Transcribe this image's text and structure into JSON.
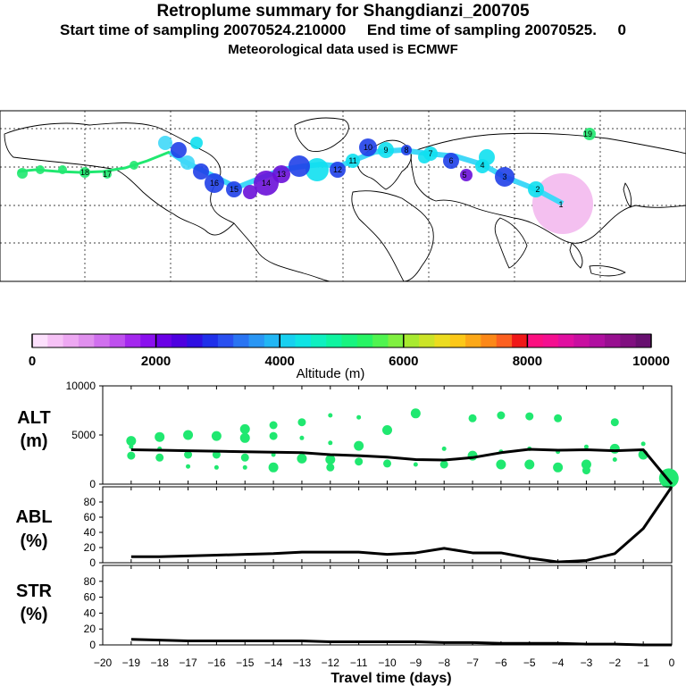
{
  "header": {
    "title": "Retroplume summary for Shangdianzi_200705",
    "sampling_line": "Start time of sampling 20070524.210000     End time of sampling 20070525.     0",
    "met_line": "Meteorological data used is ECMWF"
  },
  "colorbar": {
    "label": "Altitude (m)",
    "tick_labels": [
      "0",
      "2000",
      "4000",
      "6000",
      "8000",
      "10000"
    ],
    "tick_values": [
      0,
      2000,
      4000,
      6000,
      8000,
      10000
    ],
    "colors": [
      "#fce0fc",
      "#f6c2f6",
      "#eda8f2",
      "#e090ee",
      "#d070ee",
      "#be50ee",
      "#a428ee",
      "#8a10ee",
      "#6a00e6",
      "#4e00e0",
      "#3010e2",
      "#2030ea",
      "#2a50f0",
      "#2a74f2",
      "#2a96f4",
      "#22b6f4",
      "#18d0f0",
      "#10e4e4",
      "#10f0c0",
      "#10f4a0",
      "#18f480",
      "#28f464",
      "#50f450",
      "#80f040",
      "#a8ea30",
      "#cce428",
      "#ecdc20",
      "#fcc818",
      "#fca818",
      "#fc8818",
      "#fc6020",
      "#f01818",
      "#fc1080",
      "#f41090",
      "#e010a0",
      "#c810a0",
      "#b010a0",
      "#981090",
      "#801080",
      "#681070"
    ]
  },
  "map": {
    "plume_colors": {
      "purple": "#6a10d8",
      "blue": "#2040e8",
      "cyan": "#10e0f0",
      "green": "#20e870",
      "lightcyan": "#40d8f8",
      "pink": "#f4c0f0"
    },
    "day_labels": [
      "1",
      "2",
      "3",
      "4",
      "5",
      "6",
      "7",
      "8",
      "9",
      "10",
      "11",
      "12",
      "13",
      "14",
      "15",
      "16",
      "17",
      "18",
      "19"
    ]
  },
  "chart_data": [
    {
      "type": "line",
      "name": "ALT",
      "ylabel": "ALT\n(m)",
      "ylabel_lines": [
        "ALT",
        "(m)"
      ],
      "ylim": [
        0,
        10000
      ],
      "yticks": [
        0,
        5000,
        10000
      ],
      "x": [
        -19,
        -18,
        -17,
        -16,
        -15,
        -14,
        -13,
        -12,
        -11,
        -10,
        -9,
        -8,
        -7,
        -6,
        -5,
        -4,
        -3,
        -2,
        -1,
        0
      ],
      "values": [
        3500,
        3450,
        3400,
        3350,
        3300,
        3250,
        3200,
        3000,
        2900,
        2750,
        2500,
        2450,
        2700,
        3200,
        3550,
        3450,
        3500,
        3400,
        3500,
        0
      ],
      "scatter": [
        {
          "x": -19,
          "y": 4400
        },
        {
          "x": -19,
          "y": 2900
        },
        {
          "x": -19,
          "y": 3800
        },
        {
          "x": -18,
          "y": 4800
        },
        {
          "x": -18,
          "y": 2700
        },
        {
          "x": -18,
          "y": 3600
        },
        {
          "x": -17,
          "y": 5000
        },
        {
          "x": -17,
          "y": 3000
        },
        {
          "x": -17,
          "y": 1800
        },
        {
          "x": -16,
          "y": 4900
        },
        {
          "x": -16,
          "y": 3000
        },
        {
          "x": -16,
          "y": 1700
        },
        {
          "x": -15,
          "y": 4700
        },
        {
          "x": -15,
          "y": 2700
        },
        {
          "x": -15,
          "y": 1700
        },
        {
          "x": -15,
          "y": 5600
        },
        {
          "x": -14,
          "y": 4900
        },
        {
          "x": -14,
          "y": 3000
        },
        {
          "x": -14,
          "y": 1700
        },
        {
          "x": -14,
          "y": 6000
        },
        {
          "x": -13,
          "y": 4700
        },
        {
          "x": -13,
          "y": 2600
        },
        {
          "x": -13,
          "y": 6300
        },
        {
          "x": -12,
          "y": 4200
        },
        {
          "x": -12,
          "y": 2500
        },
        {
          "x": -12,
          "y": 1700
        },
        {
          "x": -12,
          "y": 7000
        },
        {
          "x": -11,
          "y": 3900
        },
        {
          "x": -11,
          "y": 2300
        },
        {
          "x": -11,
          "y": 6800
        },
        {
          "x": -10,
          "y": 5500
        },
        {
          "x": -10,
          "y": 2100
        },
        {
          "x": -9,
          "y": 2000
        },
        {
          "x": -9,
          "y": 7200
        },
        {
          "x": -8,
          "y": 2000
        },
        {
          "x": -8,
          "y": 3600
        },
        {
          "x": -7,
          "y": 2900
        },
        {
          "x": -7,
          "y": 6700
        },
        {
          "x": -6,
          "y": 3300
        },
        {
          "x": -6,
          "y": 2000
        },
        {
          "x": -6,
          "y": 7000
        },
        {
          "x": -5,
          "y": 3600
        },
        {
          "x": -5,
          "y": 2000
        },
        {
          "x": -5,
          "y": 6900
        },
        {
          "x": -4,
          "y": 3300
        },
        {
          "x": -4,
          "y": 1700
        },
        {
          "x": -4,
          "y": 6700
        },
        {
          "x": -3,
          "y": 3800
        },
        {
          "x": -3,
          "y": 2000
        },
        {
          "x": -3,
          "y": 1400
        },
        {
          "x": -2,
          "y": 2500
        },
        {
          "x": -2,
          "y": 3600
        },
        {
          "x": -2,
          "y": 6300
        },
        {
          "x": -1,
          "y": 4100
        },
        {
          "x": -1,
          "y": 3000
        },
        {
          "x": -0.1,
          "y": 600
        }
      ]
    },
    {
      "type": "line",
      "name": "ABL",
      "ylabel": "ABL\n(%)",
      "ylabel_lines": [
        "ABL",
        "(%)"
      ],
      "ylim": [
        0,
        100
      ],
      "yticks": [
        0,
        20,
        40,
        60,
        80
      ],
      "x": [
        -19,
        -18,
        -17,
        -16,
        -15,
        -14,
        -13,
        -12,
        -11,
        -10,
        -9,
        -8,
        -7,
        -6,
        -5,
        -4,
        -3,
        -2,
        -1,
        0
      ],
      "values": [
        8,
        8,
        9,
        10,
        11,
        12,
        14,
        14,
        14,
        11,
        13,
        19,
        13,
        13,
        6,
        1,
        3,
        12,
        45,
        100
      ]
    },
    {
      "type": "line",
      "name": "STR",
      "ylabel": "STR\n(%)",
      "ylabel_lines": [
        "STR",
        "(%)"
      ],
      "ylim": [
        0,
        100
      ],
      "yticks": [
        0,
        20,
        40,
        60,
        80
      ],
      "x": [
        -19,
        -18,
        -17,
        -16,
        -15,
        -14,
        -13,
        -12,
        -11,
        -10,
        -9,
        -8,
        -7,
        -6,
        -5,
        -4,
        -3,
        -2,
        -1,
        0
      ],
      "values": [
        7,
        6,
        5,
        5,
        5,
        5,
        5,
        4,
        4,
        4,
        4,
        3,
        3,
        2,
        2,
        2,
        1,
        1,
        0,
        0
      ]
    }
  ],
  "xaxis": {
    "label": "Travel time (days)",
    "min": -20,
    "max": 0,
    "tick_labels": [
      "-20",
      "-19",
      "-18",
      "-17",
      "-16",
      "-15",
      "-14",
      "-13",
      "-12",
      "-11",
      "-10",
      "-9",
      "-8",
      "-7",
      "-6",
      "-5",
      "-4",
      "-3",
      "-2",
      "-1",
      "0"
    ]
  }
}
